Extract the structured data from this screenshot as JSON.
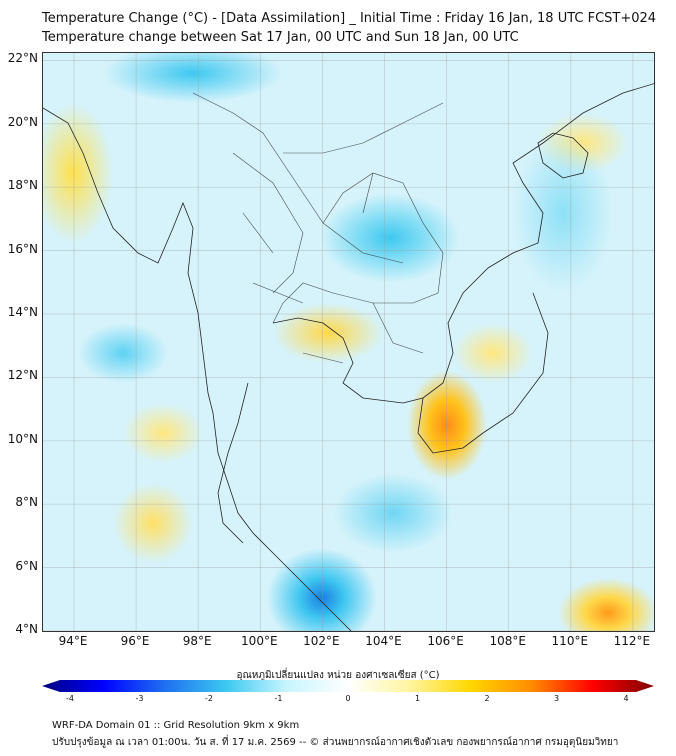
{
  "title": {
    "line1": "Temperature Change (°C) - [Data Assimilation] _ Initial Time : Friday 16 Jan, 18 UTC FCST+024",
    "line2": "Temperature change between Sat 17 Jan, 00 UTC and Sun 18 Jan, 00 UTC"
  },
  "map": {
    "lat_labels": [
      "22°N",
      "20°N",
      "18°N",
      "16°N",
      "14°N",
      "12°N",
      "10°N",
      "8°N",
      "6°N",
      "4°N"
    ],
    "lon_labels": [
      "94°E",
      "96°E",
      "98°E",
      "100°E",
      "102°E",
      "104°E",
      "106°E",
      "108°E",
      "110°E",
      "112°E"
    ]
  },
  "colorbar": {
    "label": "อุณหภูมิเปลี่ยนแปลง หน่วย องศาเซลเซียส (°C)",
    "ticks": [
      "-4",
      "-3",
      "-2",
      "-1",
      "0",
      "1",
      "2",
      "3",
      "4"
    ],
    "colors": [
      "#00007f",
      "#0000ff",
      "#1e6ff0",
      "#3cc8f0",
      "#c8f5ff",
      "#ffffff",
      "#fff5a0",
      "#ffd700",
      "#ff8c00",
      "#ff0000",
      "#7f0000"
    ]
  },
  "footer": {
    "line1": "WRF-DA Domain 01 :: Grid Resolution 9km x 9km",
    "line2": "ปรับปรุงข้อมูล ณ เวลา 01:00น. วัน ส. ที่ 17 ม.ค. 2569 -- © ส่วนพยากรณ์อากาศเชิงตัวเลข กองพยากรณ์อากาศ กรมอุตุนิยมวิทยา"
  }
}
